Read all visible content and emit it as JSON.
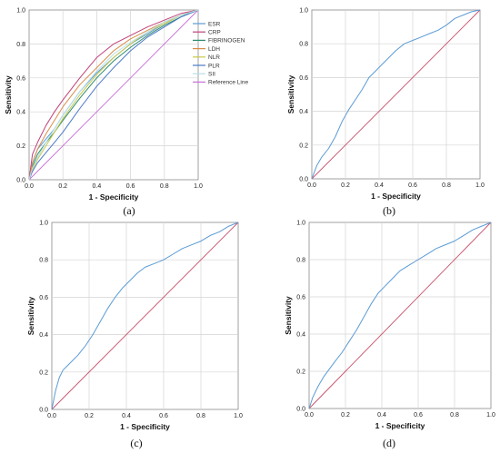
{
  "chart_data": [
    {
      "panel": "(a)",
      "type": "line",
      "xlabel": "1 - Specificity",
      "ylabel": "Sensitivity",
      "xlim": [
        0,
        1
      ],
      "ylim": [
        0,
        1
      ],
      "ticks": [
        "0.0",
        "0.2",
        "0.4",
        "0.6",
        "0.8",
        "1.0"
      ],
      "grid": true,
      "legend_position": "top-right",
      "series": [
        {
          "name": "ESR",
          "color": "#5b9bd5",
          "x": [
            0,
            0.02,
            0.05,
            0.1,
            0.15,
            0.2,
            0.3,
            0.4,
            0.5,
            0.6,
            0.7,
            0.8,
            0.9,
            1
          ],
          "y": [
            0,
            0.1,
            0.18,
            0.24,
            0.3,
            0.38,
            0.52,
            0.63,
            0.72,
            0.8,
            0.86,
            0.92,
            0.97,
            1
          ]
        },
        {
          "name": "CRP",
          "color": "#c0407a",
          "x": [
            0,
            0.02,
            0.05,
            0.1,
            0.15,
            0.2,
            0.3,
            0.4,
            0.5,
            0.6,
            0.7,
            0.8,
            0.9,
            1
          ],
          "y": [
            0,
            0.15,
            0.22,
            0.32,
            0.4,
            0.47,
            0.6,
            0.72,
            0.8,
            0.85,
            0.9,
            0.94,
            0.98,
            1
          ]
        },
        {
          "name": "FIBRINOGEN",
          "color": "#2e8b6e",
          "x": [
            0,
            0.02,
            0.05,
            0.1,
            0.15,
            0.2,
            0.3,
            0.4,
            0.5,
            0.6,
            0.7,
            0.8,
            0.9,
            1
          ],
          "y": [
            0,
            0.08,
            0.15,
            0.22,
            0.28,
            0.35,
            0.48,
            0.6,
            0.7,
            0.78,
            0.85,
            0.91,
            0.96,
            1
          ]
        },
        {
          "name": "LDH",
          "color": "#d98c4a",
          "x": [
            0,
            0.02,
            0.05,
            0.1,
            0.15,
            0.2,
            0.3,
            0.4,
            0.5,
            0.6,
            0.7,
            0.8,
            0.9,
            1
          ],
          "y": [
            0,
            0.1,
            0.18,
            0.27,
            0.35,
            0.43,
            0.56,
            0.66,
            0.76,
            0.83,
            0.88,
            0.93,
            0.97,
            1
          ]
        },
        {
          "name": "NLR",
          "color": "#c8c84a",
          "x": [
            0,
            0.02,
            0.05,
            0.1,
            0.15,
            0.2,
            0.3,
            0.4,
            0.5,
            0.6,
            0.7,
            0.8,
            0.9,
            1
          ],
          "y": [
            0,
            0.06,
            0.12,
            0.2,
            0.28,
            0.36,
            0.5,
            0.62,
            0.72,
            0.8,
            0.87,
            0.92,
            0.97,
            1
          ]
        },
        {
          "name": "PLR",
          "color": "#4a78c8",
          "x": [
            0,
            0.02,
            0.05,
            0.1,
            0.15,
            0.2,
            0.3,
            0.4,
            0.5,
            0.6,
            0.7,
            0.8,
            0.9,
            1
          ],
          "y": [
            0,
            0.05,
            0.1,
            0.16,
            0.22,
            0.28,
            0.42,
            0.55,
            0.66,
            0.76,
            0.84,
            0.9,
            0.96,
            1
          ]
        },
        {
          "name": "SII",
          "color": "#b8e0e8",
          "x": [
            0,
            0.02,
            0.05,
            0.1,
            0.15,
            0.2,
            0.3,
            0.4,
            0.5,
            0.6,
            0.7,
            0.8,
            0.9,
            1
          ],
          "y": [
            0,
            0.07,
            0.13,
            0.22,
            0.3,
            0.38,
            0.52,
            0.64,
            0.74,
            0.81,
            0.87,
            0.93,
            0.97,
            1
          ]
        },
        {
          "name": "Reference Line",
          "color": "#c870d8",
          "x": [
            0,
            1
          ],
          "y": [
            0,
            1
          ]
        }
      ]
    },
    {
      "panel": "(b)",
      "type": "line",
      "xlabel": "1 - Specificity",
      "ylabel": "Sensitivity",
      "xlim": [
        0,
        1
      ],
      "ylim": [
        0,
        1
      ],
      "ticks": [
        "0.0",
        "0.2",
        "0.4",
        "0.6",
        "0.8",
        "1.0"
      ],
      "grid": true,
      "series": [
        {
          "color": "#5b9bd5",
          "x": [
            0,
            0.03,
            0.06,
            0.1,
            0.14,
            0.18,
            0.22,
            0.26,
            0.3,
            0.34,
            0.38,
            0.42,
            0.46,
            0.5,
            0.55,
            0.6,
            0.65,
            0.7,
            0.75,
            0.8,
            0.85,
            0.9,
            0.95,
            1
          ],
          "y": [
            0,
            0.08,
            0.13,
            0.18,
            0.25,
            0.34,
            0.41,
            0.47,
            0.53,
            0.6,
            0.64,
            0.68,
            0.72,
            0.76,
            0.8,
            0.82,
            0.84,
            0.86,
            0.88,
            0.91,
            0.95,
            0.97,
            0.99,
            1
          ]
        },
        {
          "color": "#c8506a",
          "x": [
            0,
            1
          ],
          "y": [
            0,
            1
          ]
        }
      ]
    },
    {
      "panel": "(c)",
      "type": "line",
      "xlabel": "1 - Specificity",
      "ylabel": "Sensitivity",
      "xlim": [
        0,
        1
      ],
      "ylim": [
        0,
        1
      ],
      "ticks": [
        "0.0",
        "0.2",
        "0.4",
        "0.6",
        "0.8",
        "1.0"
      ],
      "grid": true,
      "series": [
        {
          "color": "#5b9bd5",
          "x": [
            0,
            0.02,
            0.04,
            0.06,
            0.08,
            0.1,
            0.14,
            0.18,
            0.22,
            0.26,
            0.3,
            0.34,
            0.38,
            0.42,
            0.46,
            0.5,
            0.55,
            0.6,
            0.65,
            0.7,
            0.75,
            0.8,
            0.85,
            0.9,
            0.95,
            1
          ],
          "y": [
            0,
            0.1,
            0.17,
            0.21,
            0.23,
            0.25,
            0.29,
            0.34,
            0.4,
            0.47,
            0.54,
            0.6,
            0.65,
            0.69,
            0.73,
            0.76,
            0.78,
            0.8,
            0.83,
            0.86,
            0.88,
            0.9,
            0.93,
            0.95,
            0.98,
            1
          ]
        },
        {
          "color": "#c8506a",
          "x": [
            0,
            1
          ],
          "y": [
            0,
            1
          ]
        }
      ]
    },
    {
      "panel": "(d)",
      "type": "line",
      "xlabel": "1 - Specificity",
      "ylabel": "Sensitivity",
      "xlim": [
        0,
        1
      ],
      "ylim": [
        0,
        1
      ],
      "ticks": [
        "0.0",
        "0.2",
        "0.4",
        "0.6",
        "0.8",
        "1.0"
      ],
      "grid": true,
      "series": [
        {
          "color": "#5b9bd5",
          "x": [
            0,
            0.02,
            0.05,
            0.08,
            0.11,
            0.14,
            0.18,
            0.22,
            0.26,
            0.3,
            0.34,
            0.38,
            0.42,
            0.46,
            0.5,
            0.55,
            0.6,
            0.65,
            0.7,
            0.75,
            0.8,
            0.85,
            0.9,
            0.95,
            1
          ],
          "y": [
            0,
            0.06,
            0.12,
            0.17,
            0.21,
            0.25,
            0.3,
            0.36,
            0.42,
            0.49,
            0.56,
            0.62,
            0.66,
            0.7,
            0.74,
            0.77,
            0.8,
            0.83,
            0.86,
            0.88,
            0.9,
            0.93,
            0.96,
            0.98,
            1
          ]
        },
        {
          "color": "#c8506a",
          "x": [
            0,
            1
          ],
          "y": [
            0,
            1
          ]
        }
      ]
    }
  ]
}
